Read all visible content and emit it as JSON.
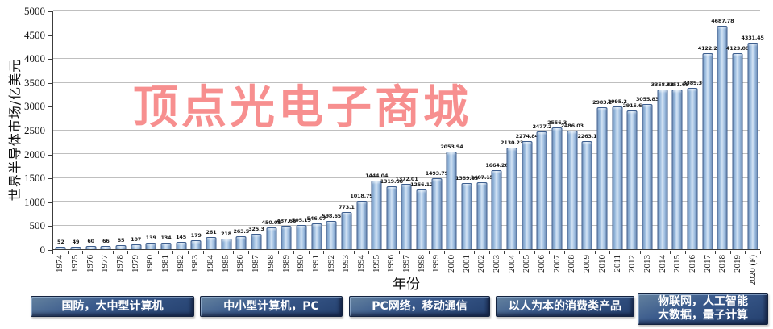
{
  "watermark": "顶点光电子商城",
  "chart_data": {
    "type": "bar",
    "title": "",
    "ylabel": "世界半导体市场/亿美元",
    "xlabel": "年份",
    "ylim": [
      0,
      5000
    ],
    "ytick_step": 500,
    "yticks": [
      0,
      500,
      1000,
      1500,
      2000,
      2500,
      3000,
      3500,
      4000,
      4500,
      5000
    ],
    "grid": true,
    "legend_position": "none",
    "bar_color": "#9cbcdf",
    "categories": [
      "1974",
      "1975",
      "1976",
      "1977",
      "1978",
      "1979",
      "1980",
      "1981",
      "1982",
      "1983",
      "1984",
      "1985",
      "1986",
      "1987",
      "1988",
      "1989",
      "1990",
      "1991",
      "1992",
      "1993",
      "1994",
      "1995",
      "1996",
      "1997",
      "1998",
      "1999",
      "2000",
      "2001",
      "2002",
      "2003",
      "2004",
      "2005",
      "2006",
      "2007",
      "2008",
      "2009",
      "2010",
      "2011",
      "2012",
      "2013",
      "2014",
      "2015",
      "2016",
      "2017",
      "2018",
      "2019",
      "2020 (F)"
    ],
    "values": [
      52,
      49,
      60,
      66,
      85,
      107,
      139,
      134,
      145,
      179,
      261,
      218,
      263.5,
      325.3,
      450.05,
      487.66,
      505.19,
      546.07,
      598.65,
      773.1,
      1018.79,
      1444.04,
      1319.68,
      1372.01,
      1256.12,
      1493.79,
      2053.94,
      1389.63,
      1407.15,
      1664.26,
      2130.23,
      2274.84,
      2477.2,
      2556.3,
      2486.03,
      2263.1,
      2983.2,
      2995.2,
      2915.6,
      3055.83,
      3358.42,
      3351.68,
      3389.3,
      4122.2,
      4687.78,
      4123,
      4331.45
    ],
    "value_labels": [
      "52",
      "49",
      "60",
      "66",
      "85",
      "107",
      "139",
      "134",
      "145",
      "179",
      "261",
      "218",
      "263.5",
      "325.3",
      "450.05",
      "487.66",
      "505.19",
      "546.07",
      "598.65",
      "773.1",
      "1018.79",
      "1444.04",
      "1319.68",
      "1372.01",
      "1256.12",
      "1493.79",
      "2053.94",
      "1389.63",
      "1407.15",
      "1664.26",
      "2130.23",
      "2274.84",
      "2477.2",
      "2556.3",
      "2486.03",
      "2263.1",
      "2983.2",
      "2995.2",
      "2915.6",
      "3055.83",
      "3358.42",
      "3351.68",
      "3389.3",
      "4122.2",
      "4687.78",
      "4123.00",
      "4331.45"
    ]
  },
  "era_banner": {
    "boxes": [
      {
        "lines": [
          "国防，大中型计算机"
        ]
      },
      {
        "lines": [
          "中小型计算机，PC"
        ]
      },
      {
        "lines": [
          "PC网络，移动通信"
        ]
      },
      {
        "lines": [
          "以人为本的消费类产品"
        ]
      },
      {
        "lines": [
          "物联网，人工智能",
          "大数据，量子计算"
        ]
      }
    ]
  }
}
